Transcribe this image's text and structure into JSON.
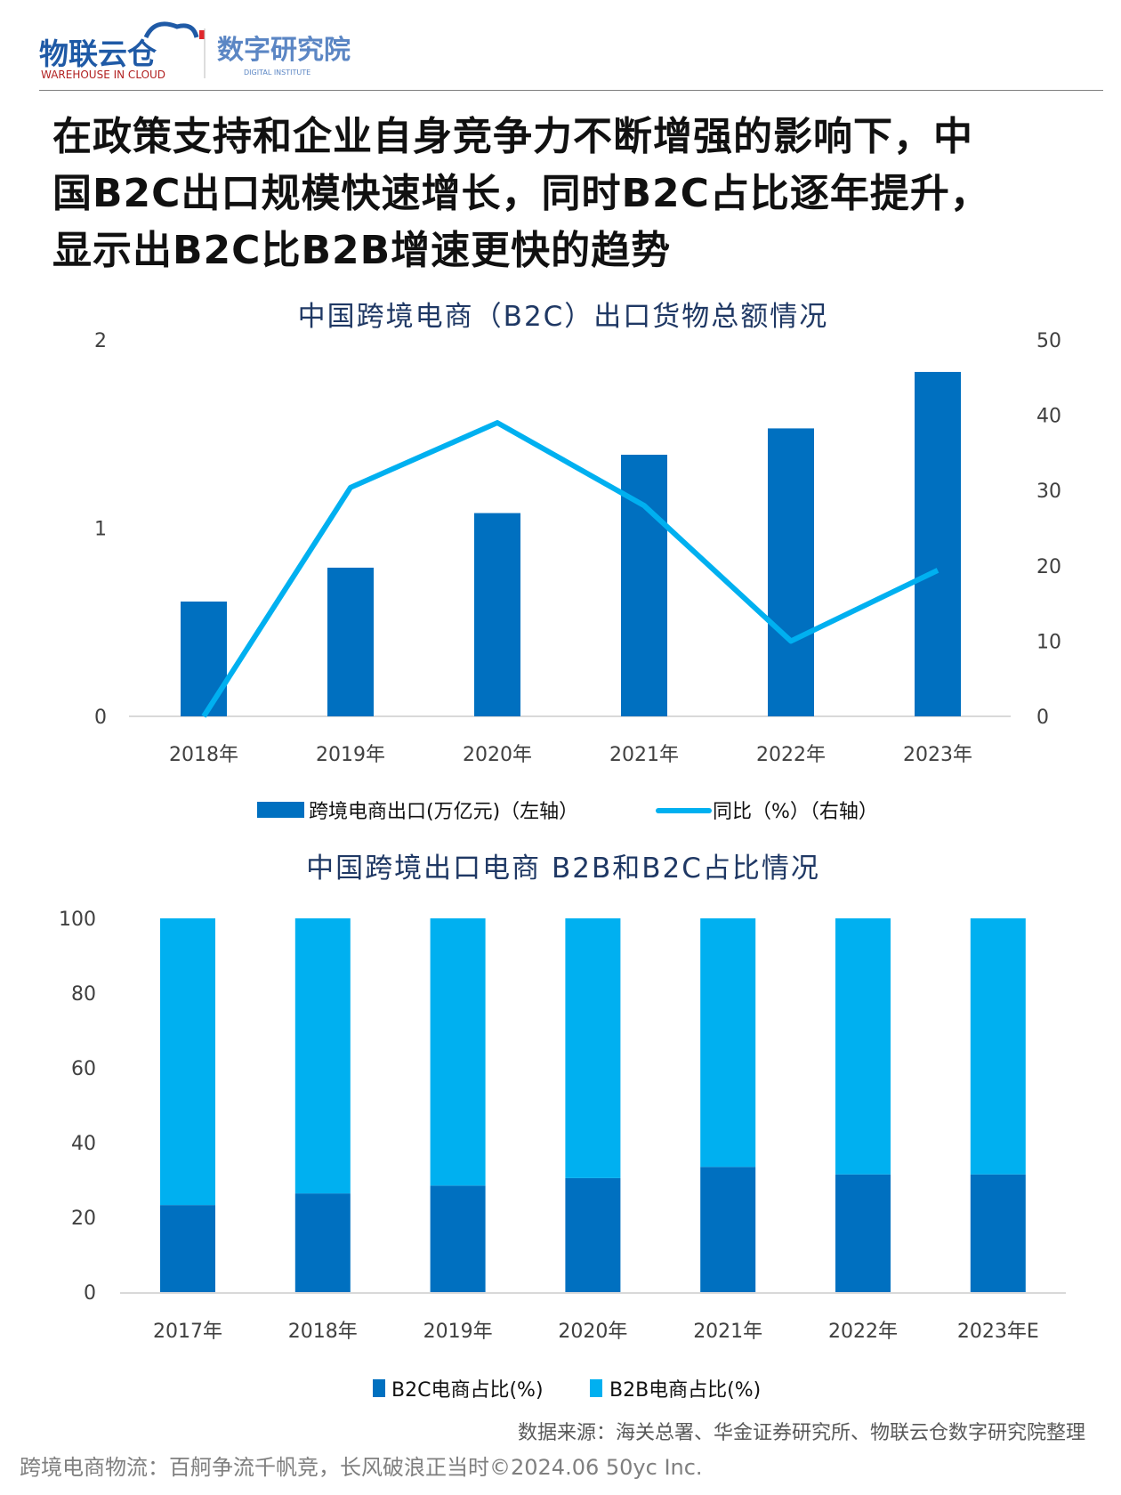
{
  "header": {
    "logo_text": "物联云仓",
    "logo_subtext": "WAREHOUSE IN CLOUD",
    "institute": "数字研究院",
    "institute_sub": "DIGITAL INSTITUTE"
  },
  "headline": {
    "lines": [
      "在政策支持和企业自身竞争力不断增强的影响下，中",
      "国B2C出口规模快速增长，同时B2C占比逐年提升，",
      "显示出B2C比B2B增速更快的趋势"
    ]
  },
  "colors": {
    "dark_blue": "#0070C0",
    "light_blue": "#00B0F0",
    "title": "#1F3864"
  },
  "chart_data": [
    {
      "type": "bar+line",
      "title": "中国跨境电商（B2C）出口货物总额情况",
      "categories": [
        "2018年",
        "2019年",
        "2020年",
        "2021年",
        "2022年",
        "2023年"
      ],
      "series": [
        {
          "name": "跨境电商出口(万亿元)（左轴）",
          "type": "bar",
          "axis": "left",
          "values": [
            0.61,
            0.79,
            1.08,
            1.39,
            1.53,
            1.83
          ],
          "color": "#0070C0"
        },
        {
          "name": "同比（%）（右轴）",
          "type": "line",
          "axis": "right",
          "values": [
            0,
            30.4,
            39,
            28,
            10,
            19.4
          ],
          "color": "#00B0F0"
        }
      ],
      "y_left": {
        "range": [
          0,
          2
        ],
        "ticks": [
          "0",
          "1",
          "2"
        ]
      },
      "y_right": {
        "range": [
          0,
          50
        ],
        "ticks": [
          "0",
          "10",
          "20",
          "30",
          "40",
          "50"
        ]
      },
      "grid": false,
      "legend": "bottom"
    },
    {
      "type": "stacked-bar",
      "title": "中国跨境出口电商 B2B和B2C占比情况",
      "categories": [
        "2017年",
        "2018年",
        "2019年",
        "2020年",
        "2021年",
        "2022年",
        "2023年E"
      ],
      "series": [
        {
          "name": "B2C电商占比(%)",
          "values": [
            23.3,
            26.4,
            28.5,
            30.5,
            33.5,
            31.5,
            31.5
          ],
          "color": "#0070C0"
        },
        {
          "name": "B2B电商占比(%)",
          "values": [
            76.7,
            73.6,
            71.5,
            69.5,
            66.5,
            68.5,
            68.5
          ],
          "color": "#00B0F0"
        }
      ],
      "y": {
        "range": [
          0,
          100
        ],
        "ticks": [
          "0",
          "20",
          "40",
          "60",
          "80",
          "100"
        ]
      },
      "grid": false,
      "legend": "bottom"
    }
  ],
  "source": "数据来源：海关总署、华金证券研究所、物联云仓数字研究院整理",
  "footer": "跨境电商物流：百舸争流千帆竞，长风破浪正当时©2024.06 50yc Inc."
}
